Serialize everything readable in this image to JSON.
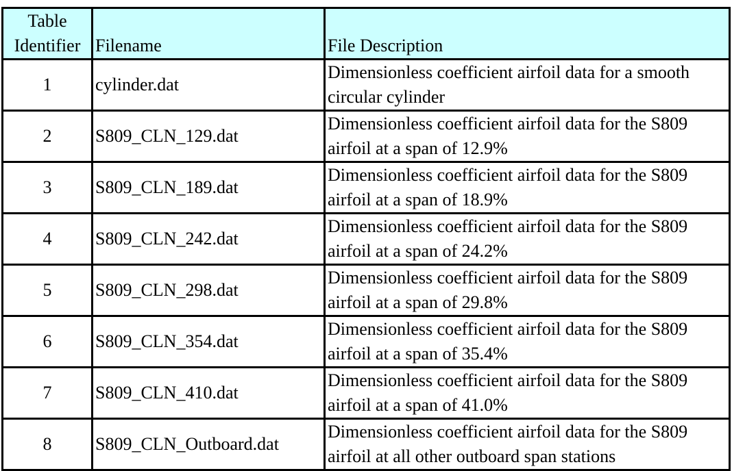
{
  "headers": {
    "id": "Table Identifier",
    "filename": "Filename",
    "description": "File Description"
  },
  "header_bg": "#ccffff",
  "rows": [
    {
      "id": "1",
      "filename": "cylinder.dat",
      "description": "Dimensionless coefficient airfoil data for a smooth circular cylinder"
    },
    {
      "id": "2",
      "filename": "S809_CLN_129.dat",
      "description": "Dimensionless coefficient airfoil data for the S809 airfoil at a span of 12.9%"
    },
    {
      "id": "3",
      "filename": "S809_CLN_189.dat",
      "description": "Dimensionless coefficient airfoil data for the S809 airfoil at a span of 18.9%"
    },
    {
      "id": "4",
      "filename": "S809_CLN_242.dat",
      "description": "Dimensionless coefficient airfoil data for the S809 airfoil at a span of 24.2%"
    },
    {
      "id": "5",
      "filename": "S809_CLN_298.dat",
      "description": "Dimensionless coefficient airfoil data for the S809 airfoil at a span of 29.8%"
    },
    {
      "id": "6",
      "filename": "S809_CLN_354.dat",
      "description": "Dimensionless coefficient airfoil data for the S809 airfoil at a span of 35.4%"
    },
    {
      "id": "7",
      "filename": "S809_CLN_410.dat",
      "description": "Dimensionless coefficient airfoil data for the S809 airfoil at a span of 41.0%"
    },
    {
      "id": "8",
      "filename": "S809_CLN_Outboard.dat",
      "description": "Dimensionless coefficient airfoil data for the S809 airfoil at all other outboard span stations"
    }
  ]
}
